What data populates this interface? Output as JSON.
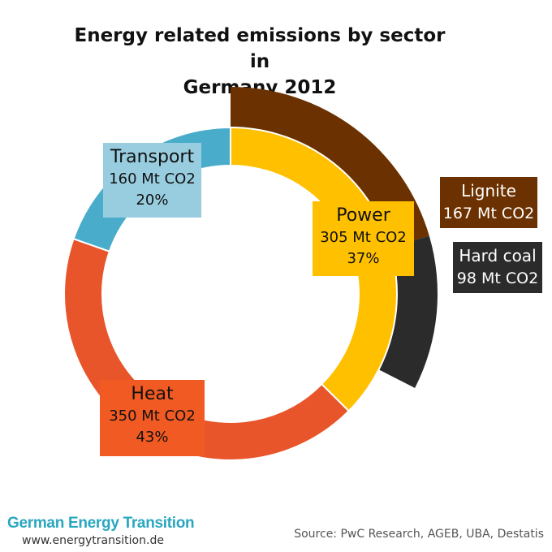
{
  "chart_data": {
    "type": "donut",
    "title": "Energy related emissions by sector in Germany 2012",
    "title_lines": [
      "Energy related emissions by sector in",
      "Germany 2012"
    ],
    "unit": "Mt CO2",
    "inner_ring": [
      {
        "name": "Power",
        "value": 305,
        "value_label": "305 Mt CO2",
        "percent_label": "37%",
        "color": "#ffc000"
      },
      {
        "name": "Heat",
        "value": 350,
        "value_label": "350 Mt CO2",
        "percent_label": "43%",
        "color": "#e9552b"
      },
      {
        "name": "Transport",
        "value": 160,
        "value_label": "160 Mt CO2",
        "percent_label": "20%",
        "color": "#4aaccb"
      }
    ],
    "outer_ring": [
      {
        "name": "Lignite",
        "parent": "Power",
        "value": 167,
        "value_label": "167 Mt CO2",
        "color": "#6b3100"
      },
      {
        "name": "Hard coal",
        "parent": "Power",
        "value": 98,
        "value_label": "98 Mt CO2",
        "color": "#2b2b2b"
      }
    ]
  },
  "footer": {
    "brand": "German Energy Transition",
    "url": "www.energytransition.de",
    "source": "Source: PwC Research, AGEB, UBA, Destatis"
  }
}
